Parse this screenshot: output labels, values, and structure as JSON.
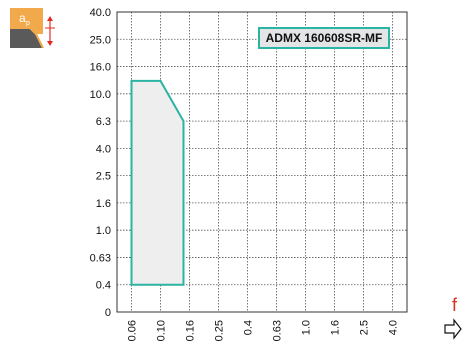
{
  "icon": {
    "name": "depth-of-cut-icon",
    "label_main": "a",
    "label_sub": "p",
    "colors": {
      "tile": "#f2a94c",
      "insert": "#5a5a5a",
      "arrow": "#e02b20"
    }
  },
  "feed": {
    "label": "f",
    "icon_name": "feed-direction-arrow-icon"
  },
  "chart_data": {
    "type": "area",
    "series": [
      {
        "name": "ADMX 160608SR-MF",
        "color": "#2bb3a3",
        "fill": "#eeeeee",
        "points": [
          {
            "f": 0.06,
            "ap": 0.4
          },
          {
            "f": 0.06,
            "ap": 12.5
          },
          {
            "f": 0.1,
            "ap": 12.5
          },
          {
            "f": 0.15,
            "ap": 6.3
          },
          {
            "f": 0.15,
            "ap": 0.4
          }
        ]
      }
    ],
    "y_ticks": [
      "0",
      "0.4",
      "0.63",
      "1.0",
      "1.6",
      "2.5",
      "4.0",
      "6.3",
      "10.0",
      "16.0",
      "25.0",
      "40.0"
    ],
    "x_ticks": [
      "0.06",
      "0.10",
      "0.16",
      "0.25",
      "0.4",
      "0.63",
      "1.0",
      "1.6",
      "2.5",
      "4.0"
    ],
    "y_scale": "log",
    "x_scale": "log",
    "grid": true,
    "legend_position": "top-right"
  }
}
